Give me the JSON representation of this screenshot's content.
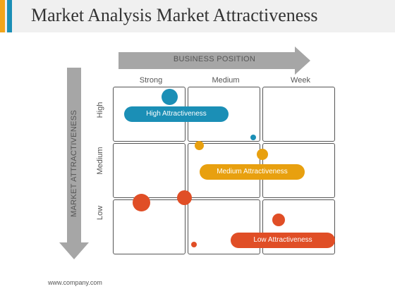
{
  "title": "Market Analysis Market Attractiveness",
  "x_axis_label": "BUSINESS POSITION",
  "y_axis_label": "MARKET ATTRACTIVENESS",
  "columns": [
    "Strong",
    "Medium",
    "Week"
  ],
  "rows": [
    "High",
    "Medium",
    "Low"
  ],
  "labels": {
    "high": "High  Attractiveness",
    "medium": "Medium Attractiveness",
    "low": "Low Attractiveness"
  },
  "colors": {
    "teal": "#1b8fb6",
    "orange": "#e8a00f",
    "red": "#e04e26",
    "arrow_gray": "#a6a6a6",
    "grid_border": "#555555"
  },
  "footer": "www.company.com"
}
